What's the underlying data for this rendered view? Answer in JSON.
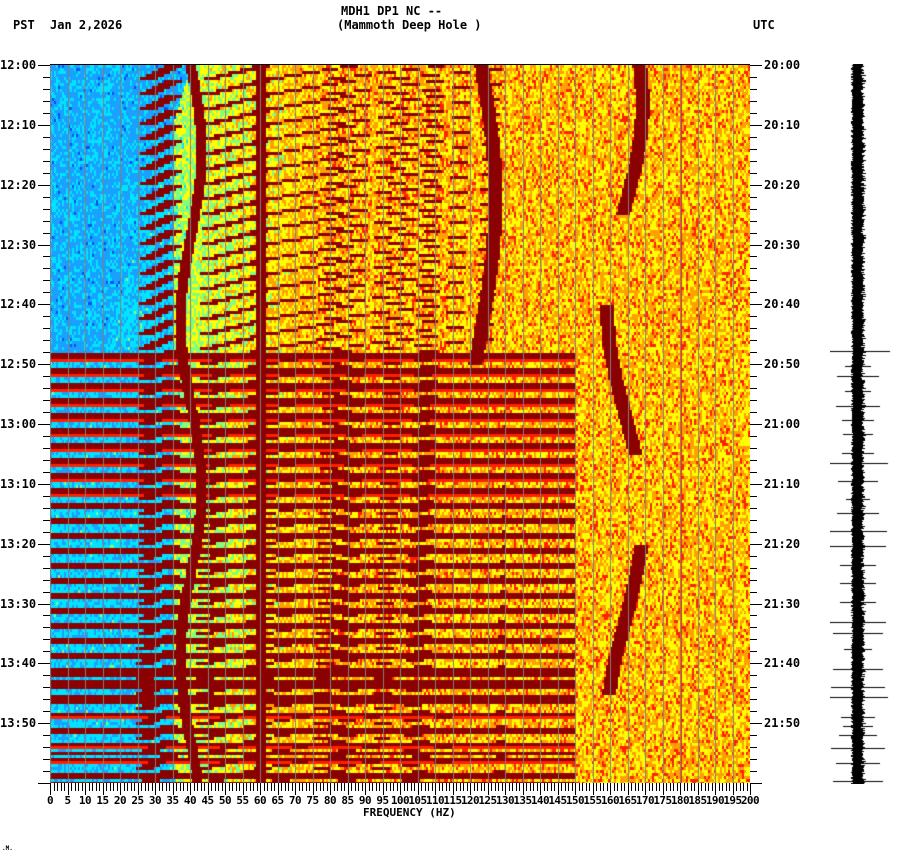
{
  "header": {
    "station_line": "MDH1 DP1 NC --",
    "location_line": "(Mammoth Deep Hole )",
    "left_timezone": "PST",
    "date": "Jan 2,2026",
    "right_timezone": "UTC"
  },
  "footer": {
    "corner_mark": ".M."
  },
  "chart_data": {
    "type": "heatmap",
    "title": "MDH1 DP1 NC -- (Mammoth Deep Hole )",
    "subtitle": "Jan 2,2026",
    "xlabel": "FREQUENCY (HZ)",
    "ylabel_left": "PST",
    "ylabel_right": "UTC",
    "xlim": [
      0,
      200
    ],
    "x_tick_step": 5,
    "x_ticks": [
      0,
      5,
      10,
      15,
      20,
      25,
      30,
      35,
      40,
      45,
      50,
      55,
      60,
      65,
      70,
      75,
      80,
      85,
      90,
      95,
      100,
      105,
      110,
      115,
      120,
      125,
      130,
      135,
      140,
      145,
      150,
      155,
      160,
      165,
      170,
      175,
      180,
      185,
      190,
      195,
      200
    ],
    "y_ticks_left": [
      "12:00",
      "12:10",
      "12:20",
      "12:30",
      "12:40",
      "12:50",
      "13:00",
      "13:10",
      "13:20",
      "13:30",
      "13:40",
      "13:50"
    ],
    "y_ticks_right": [
      "20:00",
      "20:10",
      "20:20",
      "20:30",
      "20:40",
      "20:50",
      "21:00",
      "21:10",
      "21:20",
      "21:30",
      "21:40",
      "21:50"
    ],
    "time_range_minutes": 120,
    "minor_tick_minutes": 2,
    "colormap": [
      "#0050ff",
      "#1aa0ff",
      "#00e5ff",
      "#7fff7f",
      "#ffff00",
      "#ffa000",
      "#ff2000",
      "#8b0000"
    ],
    "features": [
      {
        "name": "constant 60 Hz line",
        "freq_hz": 60,
        "intensity": "max"
      },
      {
        "name": "steady spectral line",
        "freq_hz": 180,
        "intensity": "high"
      },
      {
        "name": "descending harmonic sweeps",
        "freq_range_hz": [
          20,
          130
        ],
        "period_min": 2.5
      },
      {
        "name": "wandering tone A",
        "freq_range_hz": [
          38,
          45
        ]
      },
      {
        "name": "wandering tone B",
        "freq_range_hz": [
          118,
          128
        ]
      },
      {
        "name": "wandering tone C",
        "freq_range_hz": [
          157,
          172
        ]
      },
      {
        "name": "broadband bursts",
        "start_time": "12:48",
        "end_time": "13:59"
      },
      {
        "name": "low-frequency noise floor (blue)",
        "freq_range_hz": [
          0,
          35
        ],
        "level": "low"
      },
      {
        "name": "high-frequency background (yellow)",
        "freq_range_hz": [
          80,
          200
        ],
        "level": "medium"
      }
    ]
  },
  "seismogram": {
    "trace": "vertical helicorder strip",
    "quiet_until": "12:48",
    "spikes_after": "12:48"
  }
}
